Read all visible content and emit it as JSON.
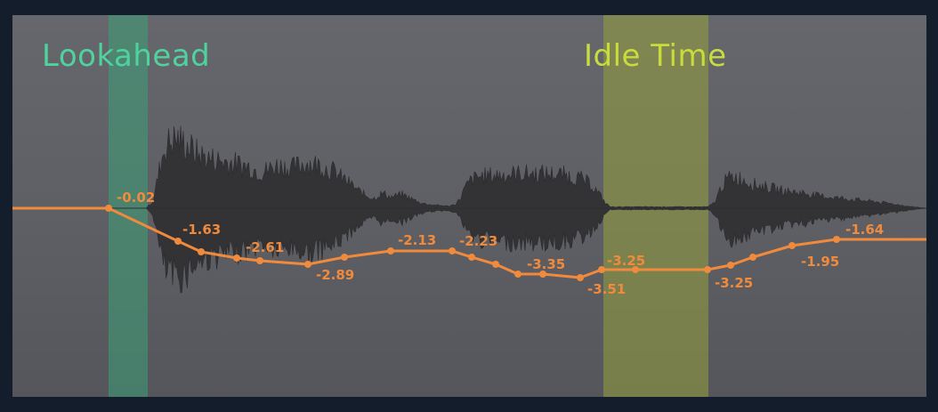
{
  "regions": {
    "lookahead": {
      "label": "Lookahead",
      "color": "#4fd39e"
    },
    "idle": {
      "label": "Idle Time",
      "color": "#c8dc3c"
    }
  },
  "gain_curve": {
    "color": "#f08a3c",
    "labels": [
      "-0.02",
      "-1.63",
      "-2.61",
      "-2.89",
      "-2.13",
      "-2.23",
      "-3.35",
      "-3.51",
      "-3.25",
      "-3.25",
      "-1.95",
      "-1.64"
    ]
  },
  "waveform": {
    "color": "#333336"
  }
}
